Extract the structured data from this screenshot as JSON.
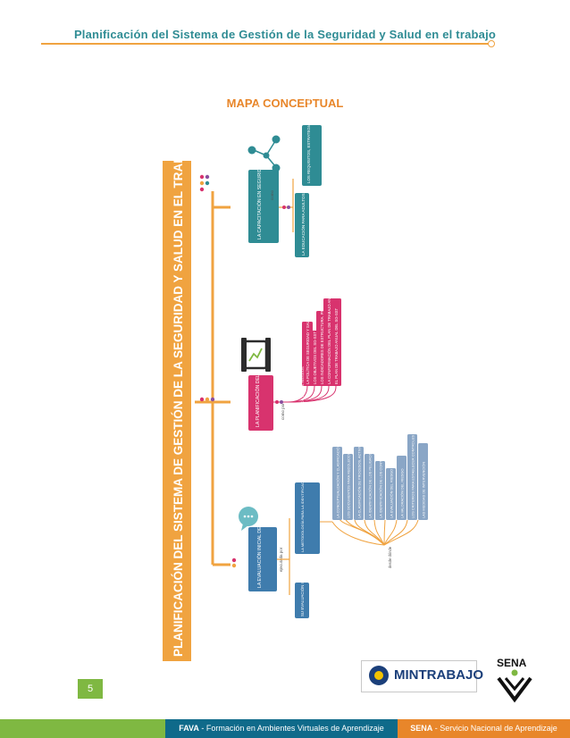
{
  "header": {
    "title": "Planificación del Sistema de Gestión de la Seguridad y Salud en el trabajo"
  },
  "map_title": "MAPA CONCEPTUAL",
  "main_title": "PLANIFICACIÓN DEL SISTEMA DE GESTIÓN DE LA SEGURIDAD Y SALUD EN EL TRABAJO",
  "branches": {
    "capacitacion": {
      "label": "LA CAPACITACIÓN EN SEGURIDAD Y SALUD EN EL TRABAJO",
      "connector": "como",
      "children": [
        "LA EDUCACIÓN PARA ADULTOS",
        "LOS REQUISITOS, ESTRATEGIAS DE ENSEÑANZA APRENDIZAJE"
      ]
    },
    "planificacion": {
      "label": "LA PLANIFICACIÓN DEL SG-SST",
      "connector": "como por",
      "children": [
        "LA POLÍTICA DE SEGURIDAD Y SALUD EN EL TRABAJO",
        "LOS OBJETIVOS DEL SG-SST",
        "LOS INDICADORES DE ESTRUCTURA, PROCESO Y RESULTADO",
        "LA CONFORMACIÓN DEL PLAN DE TRABAJO ANUAL",
        "EL PLAN DE TRABAJO ANUAL DEL SG-SST"
      ]
    },
    "evaluacion": {
      "label": "LA EVALUACIÓN INICIAL DEL SG-SST",
      "connector": "ejecutada por",
      "left_box": "SU EVALUACIÓN INICIAL",
      "mid_box": "LA METODOLOGÍA PARA LA IDENTIFICACIÓN DE PELIGROS, EVALUACIÓN Y VALORACIÓN DE LOS RIESGOS",
      "sub_connector": "desde dónde",
      "children": [
        "LA CONCEPTUALIZACIÓN Y CLASIFICACIÓN DE PELIGROS Y RIESGOS",
        "LOS DOCUMENTOS PARA RECOLECCIÓN DE INFORMACIÓN",
        "LA CLASIFICACIÓN DE PROCESOS, ACTIVIDADES Y TAREAS",
        "LA IDENTIFICACIÓN DE LOS PELIGROS, EFECTOS POSIBLES",
        "LA IDENTIFICACIÓN DE LOS CONTROLES EXISTENTES",
        "LA EVALUACIÓN DEL RIESGO",
        "LA VALORACIÓN DEL RIESGO",
        "LOS CRITERIOS PARA ESTABLECER CONTROLES",
        "LAS MEDIDAS DE INTERVENCIÓN"
      ]
    }
  },
  "page_number": "5",
  "footer": {
    "fava_bold": "FAVA",
    "fava_text": " - Formación en Ambientes Virtuales de Aprendizaje",
    "sena_bold": "SENA",
    "sena_text": " - Servicio Nacional de Aprendizaje"
  },
  "logos": {
    "mintrabajo": "MINTRABAJO",
    "sena": "SENA"
  },
  "colors": {
    "orange": "#f0a340",
    "teal": "#2f8c94",
    "blue_box": "#3f7cad",
    "pink": "#d8336e",
    "slate": "#8aa6c6",
    "green": "#7fb842",
    "dark_blue": "#0f6a8a"
  }
}
